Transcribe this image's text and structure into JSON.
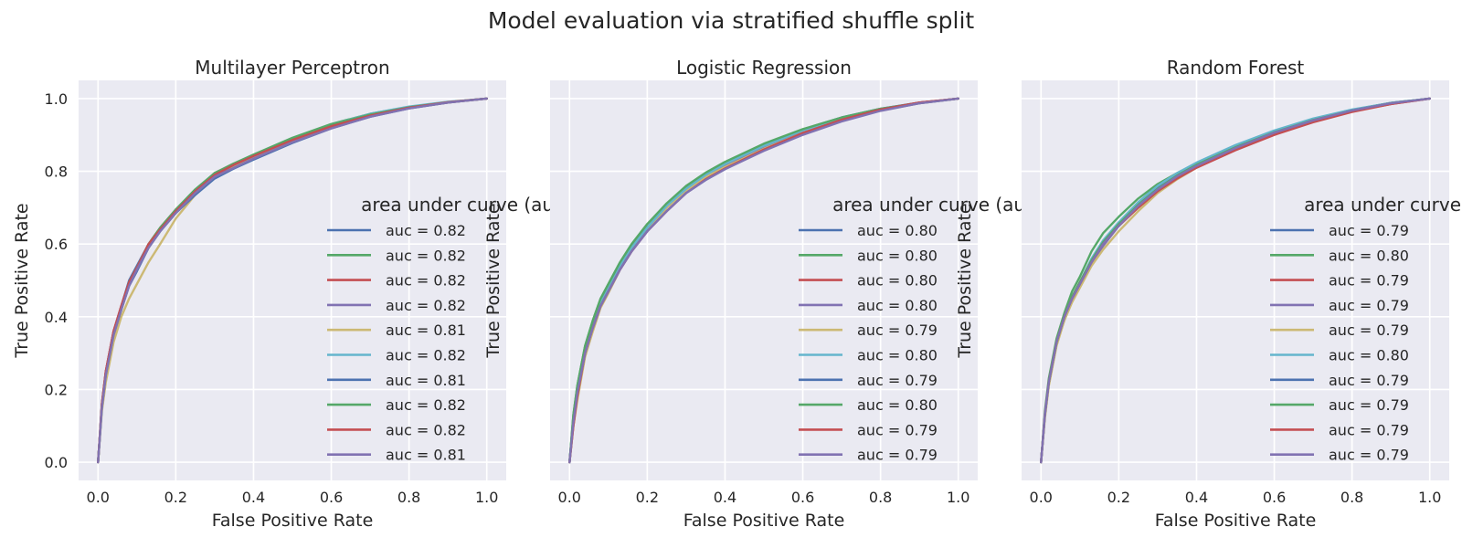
{
  "figure": {
    "suptitle": "Model evaluation via stratified shuffle split"
  },
  "colors": [
    "#4c72b0",
    "#55a868",
    "#c44e52",
    "#8172b2",
    "#ccb974",
    "#64b5cd",
    "#4c72b0",
    "#55a868",
    "#c44e52",
    "#8172b2"
  ],
  "chart_data": [
    {
      "type": "line",
      "title": "Multilayer Perceptron",
      "xlabel": "False Positive Rate",
      "ylabel": "True Positive Rate",
      "xlim": [
        -0.05,
        1.05
      ],
      "ylim": [
        -0.05,
        1.05
      ],
      "xticks": [
        "0.0",
        "0.2",
        "0.4",
        "0.6",
        "0.8",
        "1.0"
      ],
      "yticks": [
        "0.0",
        "0.2",
        "0.4",
        "0.6",
        "0.8",
        "1.0"
      ],
      "grid": true,
      "legend_title": "area under curve (auc)",
      "legend_position": "center-right",
      "x": [
        0,
        0.01,
        0.02,
        0.04,
        0.06,
        0.08,
        0.1,
        0.13,
        0.16,
        0.2,
        0.25,
        0.3,
        0.35,
        0.4,
        0.5,
        0.6,
        0.7,
        0.8,
        0.9,
        1.0
      ],
      "series": [
        {
          "name": "auc = 0.82",
          "values": [
            0,
            0.16,
            0.25,
            0.36,
            0.43,
            0.5,
            0.54,
            0.6,
            0.64,
            0.69,
            0.745,
            0.79,
            0.818,
            0.842,
            0.888,
            0.925,
            0.955,
            0.976,
            0.99,
            1.0
          ]
        },
        {
          "name": "auc = 0.82",
          "values": [
            0,
            0.15,
            0.24,
            0.35,
            0.42,
            0.49,
            0.53,
            0.59,
            0.635,
            0.695,
            0.75,
            0.795,
            0.822,
            0.846,
            0.892,
            0.93,
            0.958,
            0.977,
            0.99,
            1.0
          ]
        },
        {
          "name": "auc = 0.82",
          "values": [
            0,
            0.16,
            0.25,
            0.36,
            0.43,
            0.495,
            0.535,
            0.6,
            0.645,
            0.695,
            0.745,
            0.795,
            0.82,
            0.842,
            0.885,
            0.922,
            0.952,
            0.974,
            0.989,
            1.0
          ]
        },
        {
          "name": "auc = 0.82",
          "values": [
            0,
            0.155,
            0.245,
            0.355,
            0.425,
            0.49,
            0.53,
            0.595,
            0.64,
            0.69,
            0.745,
            0.79,
            0.816,
            0.84,
            0.886,
            0.923,
            0.953,
            0.975,
            0.99,
            1.0
          ]
        },
        {
          "name": "auc = 0.81",
          "values": [
            0,
            0.14,
            0.22,
            0.33,
            0.4,
            0.45,
            0.49,
            0.55,
            0.6,
            0.67,
            0.735,
            0.785,
            0.815,
            0.84,
            0.885,
            0.922,
            0.952,
            0.974,
            0.989,
            1.0
          ]
        },
        {
          "name": "auc = 0.82",
          "values": [
            0,
            0.155,
            0.245,
            0.355,
            0.425,
            0.49,
            0.535,
            0.6,
            0.64,
            0.69,
            0.745,
            0.79,
            0.818,
            0.842,
            0.888,
            0.928,
            0.958,
            0.978,
            0.991,
            1.0
          ]
        },
        {
          "name": "auc = 0.81",
          "values": [
            0,
            0.15,
            0.24,
            0.35,
            0.42,
            0.485,
            0.525,
            0.59,
            0.635,
            0.685,
            0.735,
            0.78,
            0.808,
            0.832,
            0.878,
            0.918,
            0.95,
            0.973,
            0.989,
            1.0
          ]
        },
        {
          "name": "auc = 0.82",
          "values": [
            0,
            0.155,
            0.245,
            0.355,
            0.425,
            0.495,
            0.535,
            0.6,
            0.645,
            0.695,
            0.75,
            0.795,
            0.82,
            0.845,
            0.89,
            0.928,
            0.956,
            0.976,
            0.99,
            1.0
          ]
        },
        {
          "name": "auc = 0.82",
          "values": [
            0,
            0.16,
            0.25,
            0.36,
            0.43,
            0.495,
            0.535,
            0.6,
            0.64,
            0.69,
            0.745,
            0.79,
            0.818,
            0.842,
            0.886,
            0.924,
            0.953,
            0.975,
            0.99,
            1.0
          ]
        },
        {
          "name": "auc = 0.81",
          "values": [
            0,
            0.15,
            0.24,
            0.35,
            0.42,
            0.485,
            0.53,
            0.59,
            0.635,
            0.685,
            0.74,
            0.785,
            0.81,
            0.835,
            0.88,
            0.918,
            0.95,
            0.973,
            0.989,
            1.0
          ]
        }
      ]
    },
    {
      "type": "line",
      "title": "Logistic Regression",
      "xlabel": "False Positive Rate",
      "ylabel": "True Positive Rate",
      "xlim": [
        -0.05,
        1.05
      ],
      "ylim": [
        -0.05,
        1.05
      ],
      "xticks": [
        "0.0",
        "0.2",
        "0.4",
        "0.6",
        "0.8",
        "1.0"
      ],
      "yticks": [],
      "grid": true,
      "legend_title": "area under curve (auc)",
      "legend_position": "center-right",
      "x": [
        0,
        0.01,
        0.02,
        0.04,
        0.06,
        0.08,
        0.1,
        0.13,
        0.16,
        0.2,
        0.25,
        0.3,
        0.35,
        0.4,
        0.5,
        0.6,
        0.7,
        0.8,
        0.9,
        1.0
      ],
      "series": [
        {
          "name": "auc = 0.80",
          "values": [
            0,
            0.12,
            0.2,
            0.31,
            0.38,
            0.44,
            0.48,
            0.54,
            0.59,
            0.645,
            0.705,
            0.755,
            0.79,
            0.82,
            0.872,
            0.915,
            0.948,
            0.972,
            0.989,
            1.0
          ]
        },
        {
          "name": "auc = 0.80",
          "values": [
            0,
            0.13,
            0.21,
            0.32,
            0.39,
            0.45,
            0.49,
            0.55,
            0.6,
            0.655,
            0.71,
            0.758,
            0.795,
            0.825,
            0.875,
            0.915,
            0.947,
            0.971,
            0.988,
            1.0
          ]
        },
        {
          "name": "auc = 0.80",
          "values": [
            0,
            0.1,
            0.18,
            0.3,
            0.37,
            0.435,
            0.475,
            0.535,
            0.585,
            0.64,
            0.7,
            0.75,
            0.786,
            0.816,
            0.868,
            0.91,
            0.945,
            0.971,
            0.989,
            1.0
          ]
        },
        {
          "name": "auc = 0.80",
          "values": [
            0,
            0.12,
            0.2,
            0.31,
            0.38,
            0.44,
            0.48,
            0.54,
            0.59,
            0.645,
            0.7,
            0.748,
            0.785,
            0.815,
            0.865,
            0.905,
            0.94,
            0.968,
            0.988,
            1.0
          ]
        },
        {
          "name": "auc = 0.79",
          "values": [
            0,
            0.1,
            0.17,
            0.29,
            0.36,
            0.425,
            0.465,
            0.53,
            0.58,
            0.64,
            0.7,
            0.748,
            0.784,
            0.812,
            0.862,
            0.905,
            0.94,
            0.968,
            0.987,
            1.0
          ]
        },
        {
          "name": "auc = 0.80",
          "values": [
            0,
            0.12,
            0.2,
            0.31,
            0.38,
            0.44,
            0.48,
            0.54,
            0.59,
            0.645,
            0.705,
            0.752,
            0.79,
            0.82,
            0.87,
            0.912,
            0.946,
            0.971,
            0.988,
            1.0
          ]
        },
        {
          "name": "auc = 0.79",
          "values": [
            0,
            0.11,
            0.19,
            0.3,
            0.37,
            0.43,
            0.47,
            0.53,
            0.58,
            0.635,
            0.69,
            0.74,
            0.776,
            0.806,
            0.858,
            0.902,
            0.938,
            0.967,
            0.987,
            1.0
          ]
        },
        {
          "name": "auc = 0.80",
          "values": [
            0,
            0.13,
            0.21,
            0.32,
            0.39,
            0.45,
            0.49,
            0.55,
            0.6,
            0.655,
            0.712,
            0.76,
            0.796,
            0.826,
            0.876,
            0.916,
            0.948,
            0.972,
            0.988,
            1.0
          ]
        },
        {
          "name": "auc = 0.79",
          "values": [
            0,
            0.1,
            0.18,
            0.3,
            0.37,
            0.43,
            0.47,
            0.53,
            0.58,
            0.635,
            0.69,
            0.74,
            0.778,
            0.808,
            0.86,
            0.905,
            0.942,
            0.97,
            0.989,
            1.0
          ]
        },
        {
          "name": "auc = 0.79",
          "values": [
            0,
            0.11,
            0.19,
            0.3,
            0.37,
            0.43,
            0.47,
            0.53,
            0.58,
            0.635,
            0.69,
            0.74,
            0.776,
            0.806,
            0.856,
            0.9,
            0.937,
            0.966,
            0.987,
            1.0
          ]
        }
      ]
    },
    {
      "type": "line",
      "title": "Random Forest",
      "xlabel": "False Positive Rate",
      "ylabel": "True Positive Rate",
      "xlim": [
        -0.05,
        1.05
      ],
      "ylim": [
        -0.05,
        1.05
      ],
      "xticks": [
        "0.0",
        "0.2",
        "0.4",
        "0.6",
        "0.8",
        "1.0"
      ],
      "yticks": [],
      "grid": true,
      "legend_title": "area under curve (auc)",
      "legend_position": "center-right",
      "x": [
        0,
        0.01,
        0.02,
        0.04,
        0.06,
        0.08,
        0.1,
        0.13,
        0.16,
        0.2,
        0.25,
        0.3,
        0.35,
        0.4,
        0.5,
        0.6,
        0.7,
        0.8,
        0.9,
        1.0
      ],
      "series": [
        {
          "name": "auc = 0.79",
          "values": [
            0,
            0.13,
            0.22,
            0.33,
            0.4,
            0.45,
            0.49,
            0.55,
            0.6,
            0.655,
            0.71,
            0.755,
            0.79,
            0.82,
            0.868,
            0.908,
            0.942,
            0.968,
            0.988,
            1.0
          ]
        },
        {
          "name": "auc = 0.80",
          "values": [
            0,
            0.14,
            0.23,
            0.34,
            0.41,
            0.47,
            0.51,
            0.58,
            0.63,
            0.675,
            0.725,
            0.765,
            0.795,
            0.822,
            0.87,
            0.91,
            0.943,
            0.969,
            0.988,
            1.0
          ]
        },
        {
          "name": "auc = 0.79",
          "values": [
            0,
            0.13,
            0.22,
            0.33,
            0.4,
            0.455,
            0.495,
            0.555,
            0.6,
            0.65,
            0.7,
            0.745,
            0.78,
            0.81,
            0.86,
            0.902,
            0.937,
            0.965,
            0.985,
            1.0
          ]
        },
        {
          "name": "auc = 0.79",
          "values": [
            0,
            0.13,
            0.22,
            0.33,
            0.39,
            0.445,
            0.485,
            0.545,
            0.595,
            0.65,
            0.705,
            0.75,
            0.786,
            0.816,
            0.865,
            0.906,
            0.94,
            0.967,
            0.987,
            1.0
          ]
        },
        {
          "name": "auc = 0.79",
          "values": [
            0,
            0.12,
            0.21,
            0.32,
            0.39,
            0.44,
            0.48,
            0.54,
            0.585,
            0.635,
            0.69,
            0.74,
            0.778,
            0.81,
            0.862,
            0.905,
            0.94,
            0.967,
            0.987,
            1.0
          ]
        },
        {
          "name": "auc = 0.80",
          "values": [
            0,
            0.13,
            0.22,
            0.33,
            0.4,
            0.455,
            0.495,
            0.56,
            0.61,
            0.66,
            0.715,
            0.76,
            0.795,
            0.824,
            0.872,
            0.912,
            0.945,
            0.97,
            0.988,
            1.0
          ]
        },
        {
          "name": "auc = 0.79",
          "values": [
            0,
            0.13,
            0.22,
            0.33,
            0.4,
            0.45,
            0.49,
            0.55,
            0.6,
            0.65,
            0.705,
            0.75,
            0.786,
            0.815,
            0.864,
            0.906,
            0.94,
            0.967,
            0.987,
            1.0
          ]
        },
        {
          "name": "auc = 0.79",
          "values": [
            0,
            0.13,
            0.22,
            0.33,
            0.4,
            0.455,
            0.495,
            0.555,
            0.605,
            0.655,
            0.708,
            0.752,
            0.788,
            0.818,
            0.866,
            0.907,
            0.941,
            0.967,
            0.987,
            1.0
          ]
        },
        {
          "name": "auc = 0.79",
          "values": [
            0,
            0.13,
            0.22,
            0.33,
            0.4,
            0.45,
            0.49,
            0.55,
            0.6,
            0.65,
            0.7,
            0.745,
            0.78,
            0.81,
            0.858,
            0.9,
            0.935,
            0.963,
            0.985,
            1.0
          ]
        },
        {
          "name": "auc = 0.79",
          "values": [
            0,
            0.13,
            0.22,
            0.33,
            0.4,
            0.45,
            0.49,
            0.55,
            0.6,
            0.65,
            0.705,
            0.75,
            0.786,
            0.815,
            0.864,
            0.906,
            0.94,
            0.967,
            0.987,
            1.0
          ]
        }
      ]
    }
  ]
}
